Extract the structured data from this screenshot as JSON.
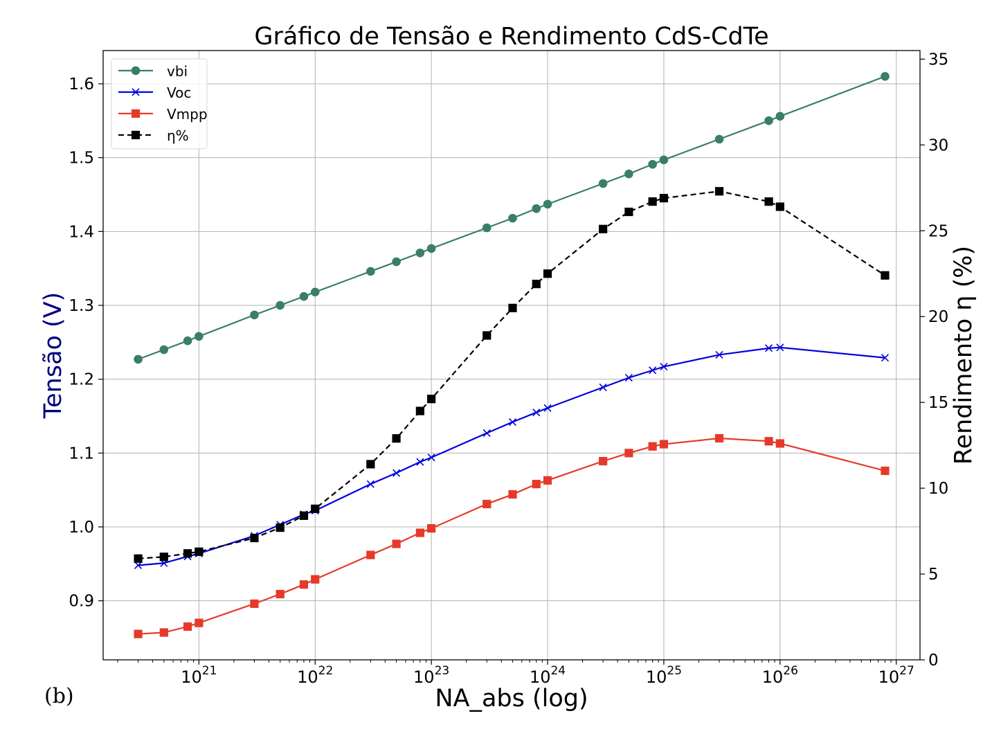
{
  "panel_label": "(b)",
  "chart_data": {
    "type": "line",
    "title": "Gráfico de Tensão e Rendimento CdS-CdTe",
    "xlabel": "NA_abs (log)",
    "ylabel": "Tensão (V)",
    "ylabel_right": "Rendimento η (%)",
    "x_scale": "log",
    "xlim": [
      1.5e+20,
      1.6e+27
    ],
    "ylim": [
      0.82,
      1.645
    ],
    "ylim_right": [
      0,
      35.5
    ],
    "x_ticks": [
      1e+21,
      1e+22,
      1e+23,
      1e+24,
      1e+25,
      1e+26,
      1e+27
    ],
    "x_tick_labels": [
      "21",
      "22",
      "23",
      "24",
      "25",
      "26",
      "27"
    ],
    "x_tick_base": "10",
    "y_ticks": [
      0.9,
      1.0,
      1.1,
      1.2,
      1.3,
      1.4,
      1.5,
      1.6
    ],
    "y_tick_labels": [
      "0.9",
      "1.0",
      "1.1",
      "1.2",
      "1.3",
      "1.4",
      "1.5",
      "1.6"
    ],
    "y_right_ticks": [
      0,
      5,
      10,
      15,
      20,
      25,
      30,
      35
    ],
    "y_right_tick_labels": [
      "0",
      "5",
      "10",
      "15",
      "20",
      "25",
      "30",
      "35"
    ],
    "grid": true,
    "legend_position": "top-left",
    "colors": {
      "ylabel": "#000080",
      "ylabel_right": "#000000"
    },
    "x": [
      3e+20,
      5e+20,
      8e+20,
      1e+21,
      3e+21,
      5e+21,
      8e+21,
      1e+22,
      3e+22,
      5e+22,
      8e+22,
      1e+23,
      3e+23,
      5e+23,
      8e+23,
      1e+24,
      3e+24,
      5e+24,
      8e+24,
      1e+25,
      3e+25,
      8e+25,
      1e+26,
      8e+26
    ],
    "series": [
      {
        "name": "vbi",
        "axis": "left",
        "color": "#3a7d6b",
        "marker": "circle",
        "dash": "solid",
        "values": [
          1.227,
          1.24,
          1.252,
          1.258,
          1.287,
          1.3,
          1.312,
          1.318,
          1.346,
          1.359,
          1.371,
          1.377,
          1.405,
          1.418,
          1.431,
          1.437,
          1.465,
          1.478,
          1.491,
          1.497,
          1.525,
          1.55,
          1.556,
          1.61
        ]
      },
      {
        "name": "Voc",
        "axis": "left",
        "color": "#0000dd",
        "marker": "x",
        "dash": "solid",
        "values": [
          0.948,
          0.951,
          0.96,
          0.964,
          0.988,
          1.003,
          1.017,
          1.022,
          1.058,
          1.073,
          1.088,
          1.094,
          1.127,
          1.142,
          1.155,
          1.161,
          1.189,
          1.202,
          1.212,
          1.217,
          1.233,
          1.242,
          1.243,
          1.229
        ]
      },
      {
        "name": "Vmpp",
        "axis": "left",
        "color": "#e53a2a",
        "marker": "square",
        "dash": "solid",
        "values": [
          0.855,
          0.857,
          0.865,
          0.87,
          0.896,
          0.909,
          0.922,
          0.929,
          0.962,
          0.977,
          0.992,
          0.998,
          1.031,
          1.044,
          1.058,
          1.063,
          1.089,
          1.1,
          1.109,
          1.112,
          1.12,
          1.116,
          1.113,
          1.076
        ]
      },
      {
        "name": "η%",
        "axis": "right",
        "color": "#000000",
        "marker": "square",
        "dash": "dashed",
        "values": [
          5.9,
          6.0,
          6.2,
          6.3,
          7.1,
          7.7,
          8.4,
          8.8,
          11.4,
          12.9,
          14.5,
          15.2,
          18.9,
          20.5,
          21.9,
          22.5,
          25.1,
          26.1,
          26.7,
          26.9,
          27.3,
          26.7,
          26.4,
          22.4
        ]
      }
    ]
  }
}
